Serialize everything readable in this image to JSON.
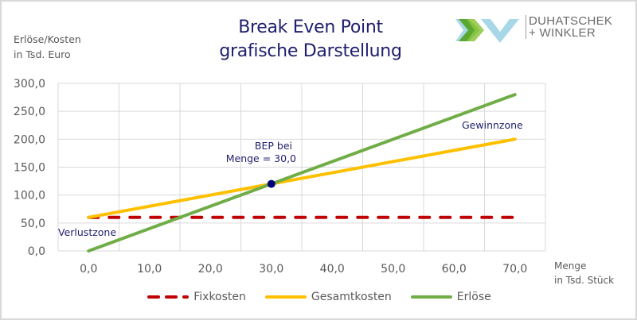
{
  "header": {
    "title_line1": "Break Even Point",
    "title_line2": "grafische Darstellung",
    "logo_line1": "DUHATSCHEK",
    "logo_line2": "+ WINKLER"
  },
  "axes": {
    "ylabel_line1": "Erlöse/Kosten",
    "ylabel_line2": "in Tsd. Euro",
    "xlabel_line1": "Menge",
    "xlabel_line2": "in Tsd. Stück"
  },
  "annotations": {
    "bep_line1": "BEP bei",
    "bep_line2": "Menge = 30,0",
    "gewinnzone": "Gewinnzone",
    "verlustzone": "Verlustzone"
  },
  "colors": {
    "fixkosten": "#c00000",
    "gesamtkosten": "#ffc000",
    "erloese": "#70ad47",
    "bep_marker": "#00007a",
    "text_dark_blue": "#1f1f6e",
    "grid": "#d9d9d9"
  },
  "chart_data": {
    "type": "line",
    "title": "Break Even Point grafische Darstellung",
    "xlabel": "Menge in Tsd. Stück",
    "ylabel": "Erlöse/Kosten in Tsd. Euro",
    "x": [
      0,
      10,
      20,
      30,
      40,
      50,
      60,
      70
    ],
    "x_tick_labels": [
      "0,0",
      "10,0",
      "20,0",
      "30,0",
      "40,0",
      "50,0",
      "60,0",
      "70,0"
    ],
    "y_tick_labels": [
      "0,0",
      "50,0",
      "100,0",
      "150,0",
      "200,0",
      "250,0",
      "300,0"
    ],
    "ylim": [
      0,
      300
    ],
    "grid": true,
    "legend_position": "bottom",
    "series": [
      {
        "name": "Fixkosten",
        "style": "dashed",
        "color": "#c00000",
        "values": [
          60,
          60,
          60,
          60,
          60,
          60,
          60,
          60
        ]
      },
      {
        "name": "Gesamtkosten",
        "style": "solid",
        "color": "#ffc000",
        "values": [
          60,
          80,
          100,
          120,
          140,
          160,
          180,
          200
        ]
      },
      {
        "name": "Erlöse",
        "style": "solid",
        "color": "#70ad47",
        "values": [
          0,
          40,
          80,
          120,
          160,
          200,
          240,
          280
        ]
      }
    ],
    "markers": [
      {
        "label": "BEP bei Menge = 30,0",
        "x": 30,
        "y": 120
      }
    ],
    "annotations": [
      {
        "text": "Gewinnzone",
        "near_x": 65,
        "near_y": 225
      },
      {
        "text": "Verlustzone",
        "near_x": 0,
        "near_y": 35
      }
    ]
  }
}
